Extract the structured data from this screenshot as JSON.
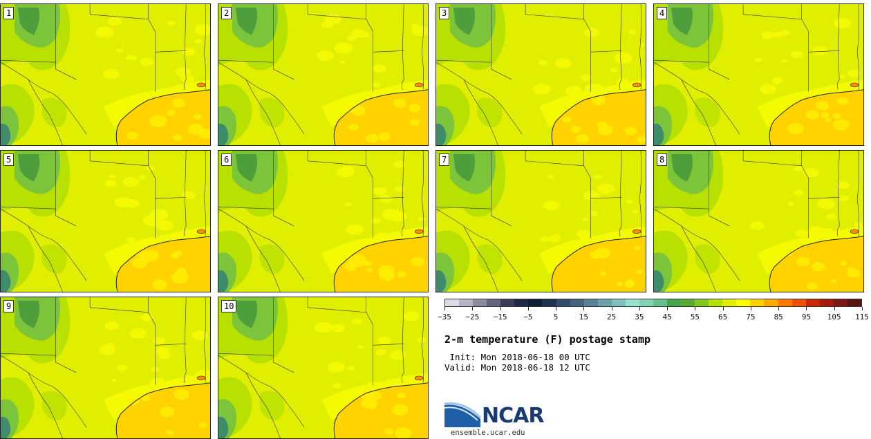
{
  "panels": [
    {
      "label": "1"
    },
    {
      "label": "2"
    },
    {
      "label": "3"
    },
    {
      "label": "4"
    },
    {
      "label": "5"
    },
    {
      "label": "6"
    },
    {
      "label": "7"
    },
    {
      "label": "8"
    },
    {
      "label": "9"
    },
    {
      "label": "10"
    }
  ],
  "colors": {
    "land_base": "#e0ee00",
    "land_warm": "#f4fa00",
    "land_cool": "#b8e000",
    "land_green": "#7cc43a",
    "land_dark": "#4f9e3c",
    "land_teal": "#3f8c6a",
    "gulf": "#ffd200",
    "gulf_light": "#ffee00",
    "boundary": "#333333"
  },
  "colorbar": {
    "colors": [
      "#dcdce6",
      "#b4b4c3",
      "#8c8ca0",
      "#64647d",
      "#3c3c55",
      "#1e2846",
      "#0f1e37",
      "#1e3250",
      "#32506e",
      "#46647d",
      "#5a8296",
      "#6ea0aa",
      "#82bebe",
      "#96e1d2",
      "#82d2b4",
      "#64c38c",
      "#46a64b",
      "#5aaa32",
      "#82c81e",
      "#b4e100",
      "#e1f000",
      "#ffff00",
      "#ffd200",
      "#ffaa00",
      "#ff7800",
      "#f05000",
      "#c82800",
      "#a01e0a",
      "#7d1914",
      "#5a140f"
    ],
    "ticks": [
      "−35",
      "−25",
      "−15",
      "−5",
      "5",
      "15",
      "25",
      "35",
      "45",
      "55",
      "65",
      "75",
      "85",
      "95",
      "105",
      "115"
    ]
  },
  "title": "2-m temperature (F) postage stamp",
  "init_line": " Init: Mon 2018-06-18 00 UTC",
  "valid_line": "Valid: Mon 2018-06-18 12 UTC",
  "logo_text": "NCAR",
  "url": "ensemble.ucar.edu"
}
